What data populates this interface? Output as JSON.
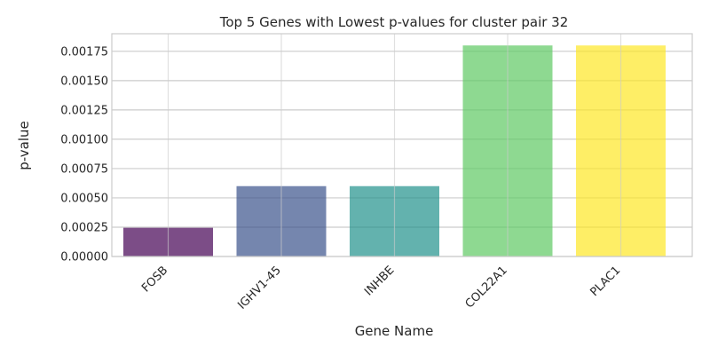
{
  "chart_data": {
    "type": "bar",
    "title": "Top 5 Genes with Lowest p-values for cluster pair 32",
    "xlabel": "Gene Name",
    "ylabel": "p-value",
    "categories": [
      "FOSB",
      "IGHV1-45",
      "INHBE",
      "COL22A1",
      "PLAC1"
    ],
    "values": [
      0.000245,
      0.0006,
      0.0006,
      0.0018,
      0.0018
    ],
    "colors": [
      "#440154",
      "#3b528b",
      "#21918c",
      "#5ec962",
      "#fde725"
    ],
    "ylim": [
      0,
      0.0019
    ],
    "yticks": [
      0,
      0.00025,
      0.0005,
      0.00075,
      0.001,
      0.00125,
      0.0015,
      0.00175
    ],
    "ytick_labels": [
      "0.00000",
      "0.00025",
      "0.00050",
      "0.00075",
      "0.00100",
      "0.00125",
      "0.00150",
      "0.00175"
    ],
    "grid": true,
    "legend": "none"
  }
}
